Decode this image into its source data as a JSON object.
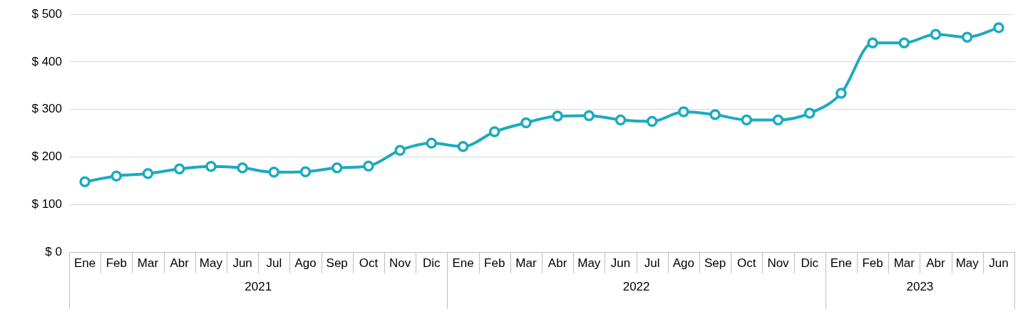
{
  "chart_data": {
    "type": "line",
    "categories": [
      "Ene",
      "Feb",
      "Mar",
      "Abr",
      "May",
      "Jun",
      "Jul",
      "Ago",
      "Sep",
      "Oct",
      "Nov",
      "Dic",
      "Ene",
      "Feb",
      "Mar",
      "Abr",
      "May",
      "Jun",
      "Jul",
      "Ago",
      "Sep",
      "Oct",
      "Nov",
      "Dic",
      "Ene",
      "Feb",
      "Mar",
      "Abr",
      "May",
      "Jun"
    ],
    "series": [
      {
        "color": "#1aabbf",
        "values": [
          148,
          160,
          165,
          175,
          180,
          177,
          168,
          169,
          177,
          181,
          214,
          229,
          222,
          253,
          272,
          286,
          287,
          278,
          275,
          295,
          289,
          278,
          278,
          292,
          334,
          440,
          440,
          458,
          452,
          472
        ]
      }
    ],
    "ylim": [
      0,
      500
    ],
    "yticks": [
      {
        "value": 0,
        "label": "$ 0"
      },
      {
        "value": 100,
        "label": "$ 100"
      },
      {
        "value": 200,
        "label": "$ 200"
      },
      {
        "value": 300,
        "label": "$ 300"
      },
      {
        "value": 400,
        "label": "$ 400"
      },
      {
        "value": 500,
        "label": "$ 500"
      }
    ],
    "annotations": [
      "2021",
      "2022",
      "2023"
    ],
    "grid": "y",
    "legend": false,
    "marker": "circle",
    "line_style": "solid"
  }
}
